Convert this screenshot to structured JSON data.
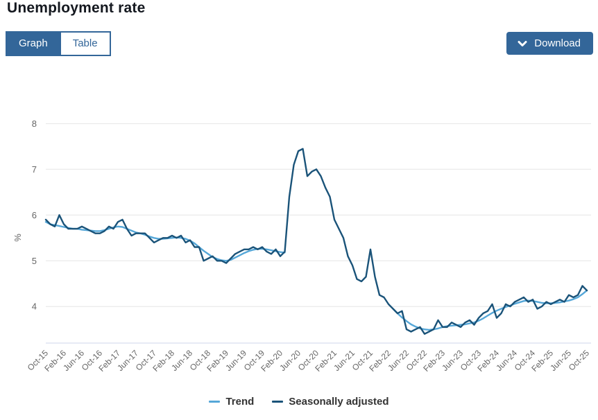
{
  "header": {
    "title": "Unemployment rate"
  },
  "tabs": {
    "graph_label": "Graph",
    "table_label": "Table",
    "active": "Graph"
  },
  "download": {
    "label": "Download"
  },
  "theme": {
    "accent": "#336699",
    "accent_text": "#ffffff"
  },
  "chart_data": {
    "type": "line",
    "title": "Unemployment rate",
    "xlabel": "",
    "ylabel": "%",
    "ylim": [
      3.2,
      8.4
    ],
    "yticks": [
      4,
      5,
      6,
      7,
      8
    ],
    "grid": true,
    "legend_position": "bottom",
    "x_frequency": "monthly",
    "x_start": "Oct-15",
    "x_end": "Oct-25",
    "x_tick_every": 4,
    "x_tick_labels": [
      "Oct-15",
      "Feb-16",
      "Jun-16",
      "Oct-16",
      "Feb-17",
      "Jun-17",
      "Oct-17",
      "Feb-18",
      "Jun-18",
      "Oct-18",
      "Feb-19",
      "Jun-19",
      "Oct-19",
      "Feb-20",
      "Jun-20",
      "Oct-20",
      "Feb-21",
      "Jun-21",
      "Oct-21",
      "Feb-22",
      "Jun-22",
      "Oct-22",
      "Feb-23",
      "Jun-23",
      "Oct-23",
      "Feb-24",
      "Jun-24",
      "Oct-24",
      "Feb-25",
      "Jun-25",
      "Oct-25"
    ],
    "colors": {
      "grid": "#e6e6e6",
      "axis_line": "#ccd6eb",
      "tick_label": "#666666"
    },
    "series": [
      {
        "name": "Trend",
        "color": "#55a7d8",
        "values": [
          5.85,
          5.8,
          5.78,
          5.76,
          5.74,
          5.72,
          5.7,
          5.7,
          5.68,
          5.67,
          5.66,
          5.65,
          5.65,
          5.67,
          5.7,
          5.73,
          5.75,
          5.74,
          5.7,
          5.66,
          5.62,
          5.6,
          5.57,
          5.53,
          5.5,
          5.48,
          5.48,
          5.49,
          5.5,
          5.51,
          5.5,
          5.48,
          5.44,
          5.38,
          5.3,
          5.22,
          5.15,
          5.08,
          5.04,
          5.01,
          5.0,
          5.02,
          5.07,
          5.12,
          5.17,
          5.21,
          5.24,
          5.26,
          5.26,
          5.25,
          5.23,
          5.21,
          5.19,
          5.18,
          null,
          null,
          null,
          null,
          null,
          null,
          null,
          null,
          null,
          null,
          null,
          null,
          null,
          null,
          null,
          null,
          null,
          null,
          null,
          null,
          null,
          null,
          null,
          3.95,
          3.85,
          3.76,
          3.68,
          3.61,
          3.56,
          3.52,
          3.5,
          3.49,
          3.5,
          3.52,
          3.55,
          3.57,
          3.58,
          3.59,
          3.6,
          3.61,
          3.63,
          3.65,
          3.69,
          3.74,
          3.8,
          3.86,
          3.91,
          3.95,
          3.99,
          4.02,
          4.06,
          4.09,
          4.12,
          4.13,
          4.12,
          4.1,
          4.08,
          4.07,
          4.07,
          4.08,
          4.09,
          4.11,
          4.13,
          4.16,
          4.2,
          4.27,
          4.35
        ]
      },
      {
        "name": "Seasonally adjusted",
        "color": "#1a5379",
        "values": [
          5.9,
          5.8,
          5.75,
          6.0,
          5.8,
          5.7,
          5.7,
          5.7,
          5.75,
          5.7,
          5.65,
          5.6,
          5.6,
          5.65,
          5.75,
          5.7,
          5.85,
          5.9,
          5.7,
          5.55,
          5.6,
          5.6,
          5.6,
          5.5,
          5.4,
          5.45,
          5.5,
          5.5,
          5.55,
          5.5,
          5.55,
          5.4,
          5.45,
          5.3,
          5.3,
          5.0,
          5.05,
          5.1,
          5.0,
          5.0,
          4.95,
          5.05,
          5.15,
          5.2,
          5.25,
          5.25,
          5.3,
          5.25,
          5.3,
          5.2,
          5.15,
          5.25,
          5.1,
          5.2,
          6.4,
          7.1,
          7.4,
          7.45,
          6.85,
          6.95,
          7.0,
          6.85,
          6.6,
          6.4,
          5.9,
          5.7,
          5.5,
          5.1,
          4.9,
          4.6,
          4.55,
          4.65,
          5.25,
          4.65,
          4.25,
          4.2,
          4.05,
          3.95,
          3.85,
          3.9,
          3.5,
          3.45,
          3.5,
          3.55,
          3.4,
          3.45,
          3.5,
          3.7,
          3.55,
          3.55,
          3.65,
          3.6,
          3.55,
          3.65,
          3.7,
          3.6,
          3.75,
          3.85,
          3.9,
          4.05,
          3.75,
          3.85,
          4.05,
          4.0,
          4.1,
          4.15,
          4.2,
          4.1,
          4.15,
          3.95,
          4.0,
          4.1,
          4.05,
          4.1,
          4.15,
          4.1,
          4.25,
          4.2,
          4.25,
          4.45,
          4.35
        ]
      }
    ]
  }
}
